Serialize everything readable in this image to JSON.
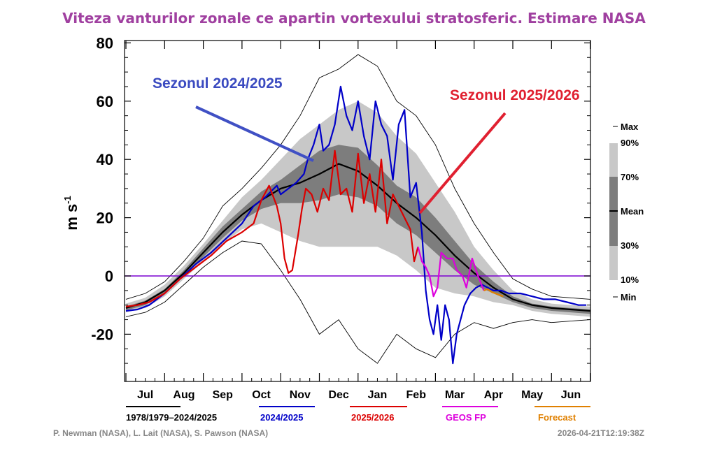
{
  "chart_data": {
    "type": "line",
    "title": "Viteza vanturilor zonale ce apartin vortexului stratosferic. Estimare NASA",
    "ylabel": "m s",
    "ylabel_sup": "-1",
    "ylim": [
      -32,
      80
    ],
    "y_ticks": [
      80,
      60,
      40,
      20,
      0,
      -20
    ],
    "y_tick_labels": [
      "80",
      "60",
      "40",
      "20",
      "0",
      "-20"
    ],
    "x_axis": "months Jul–Jun (climatological year)",
    "x_range_months": [
      0,
      12
    ],
    "month_labels": [
      "Jul",
      "Aug",
      "Sep",
      "Oct",
      "Nov",
      "Dec",
      "Jan",
      "Feb",
      "Mar",
      "Apr",
      "May",
      "Jun"
    ],
    "zero_line": 0,
    "colors": {
      "mean": "#000000",
      "extremes": "#000000",
      "band_10_90": "#c8c8c8",
      "band_30_70": "#7d7d7d",
      "s2024": "#0000c8",
      "s2025": "#dc0000",
      "geos": "#dd00dd",
      "forecast": "#e08000",
      "zero": "#7a00d0",
      "title": "#a040a0",
      "ann_blue": "#3a4ac0",
      "ann_red": "#e02030"
    },
    "climatology": {
      "x": [
        0,
        0.5,
        1,
        1.5,
        2,
        2.5,
        3,
        3.5,
        4,
        4.5,
        5,
        5.5,
        6,
        6.5,
        7,
        7.5,
        8,
        8.5,
        9,
        9.5,
        10,
        10.5,
        11,
        11.5,
        12
      ],
      "mean": [
        -11,
        -9,
        -5,
        1,
        8,
        15,
        21,
        26,
        30,
        32,
        35,
        38.5,
        36,
        31,
        25,
        20,
        14,
        7,
        1,
        -4,
        -8,
        -10,
        -11,
        -11.5,
        -12
      ],
      "p10": [
        -12.5,
        -11,
        -7,
        -1,
        5,
        11,
        16,
        18,
        15,
        12,
        10,
        10,
        10,
        10,
        7,
        2,
        -4,
        -6,
        -7,
        -9,
        -10,
        -12,
        -13,
        -13.5,
        -14
      ],
      "p30": [
        -11.8,
        -10,
        -5.8,
        0,
        6.5,
        13,
        19,
        23,
        25,
        25,
        26,
        28,
        27,
        24,
        18,
        14,
        8,
        2,
        -3,
        -6,
        -9,
        -11,
        -12,
        -12.5,
        -13
      ],
      "p70": [
        -10.5,
        -8.5,
        -4.5,
        2,
        9.5,
        17,
        23,
        29,
        33,
        38,
        43,
        45,
        44,
        38,
        31,
        27,
        20,
        12,
        4,
        -2,
        -7,
        -9.5,
        -10.5,
        -11,
        -11.5
      ],
      "p90": [
        -9.5,
        -7.5,
        -3,
        3.5,
        11,
        19,
        27,
        33,
        40,
        47,
        52,
        57,
        60,
        56,
        48,
        42,
        32,
        22,
        10,
        2,
        -5,
        -8,
        -9.5,
        -10,
        -10.5
      ],
      "min": [
        -14,
        -12.5,
        -9,
        -3,
        3,
        8,
        12,
        11,
        2,
        -8,
        -20,
        -15,
        -25,
        -30,
        -20,
        -25,
        -28,
        -20,
        -16,
        -18,
        -16,
        -15,
        -16,
        -15.5,
        -15
      ],
      "max": [
        -8,
        -6,
        -2,
        5,
        13,
        24,
        30,
        37,
        45,
        55,
        68,
        71,
        76,
        72,
        60,
        55,
        45,
        30,
        18,
        8,
        -1,
        -4.5,
        -7,
        -7.5,
        -8
      ]
    },
    "series": [
      {
        "name": "2024/2025",
        "x": [
          0,
          0.3,
          0.6,
          1,
          1.4,
          1.8,
          2.2,
          2.6,
          3,
          3.3,
          3.6,
          3.9,
          4.0,
          4.2,
          4.4,
          4.6,
          4.7,
          4.85,
          5.0,
          5.1,
          5.25,
          5.4,
          5.55,
          5.7,
          5.85,
          6.0,
          6.15,
          6.3,
          6.45,
          6.6,
          6.75,
          6.9,
          7.05,
          7.2,
          7.35,
          7.5,
          7.65,
          7.75,
          7.85,
          7.95,
          8.05,
          8.15,
          8.25,
          8.35,
          8.45,
          8.55,
          8.65,
          8.75,
          8.9,
          9.05,
          9.2,
          9.35,
          9.5,
          9.7,
          9.9,
          10.2,
          10.5,
          10.8,
          11.1,
          11.4,
          11.7,
          11.9
        ],
        "values": [
          -12,
          -11.5,
          -10,
          -6,
          -1,
          4,
          8,
          13,
          18,
          24,
          27,
          31,
          28,
          30,
          32,
          35,
          40,
          45,
          52,
          43,
          45,
          52,
          65,
          55,
          50,
          60,
          48,
          40,
          60,
          52,
          48,
          33,
          52,
          57,
          27,
          32,
          15,
          -5,
          -15,
          -20,
          -10,
          -22,
          -10,
          -15,
          -30,
          -20,
          -15,
          -10,
          -6,
          -4,
          -3,
          -4,
          -5,
          -5,
          -6,
          -6,
          -7,
          -8,
          -8,
          -9,
          -10,
          -10
        ]
      },
      {
        "name": "2025/2026",
        "x": [
          0,
          0.3,
          0.6,
          1,
          1.4,
          1.8,
          2.2,
          2.6,
          3,
          3.3,
          3.5,
          3.7,
          3.9,
          4.0,
          4.1,
          4.2,
          4.3,
          4.45,
          4.55,
          4.65,
          4.8,
          4.95,
          5.1,
          5.25,
          5.4,
          5.55,
          5.7,
          5.85,
          6.0,
          6.15,
          6.3,
          6.45,
          6.6,
          6.75,
          6.9,
          7.05,
          7.2,
          7.35,
          7.45,
          7.55
        ],
        "values": [
          -10.5,
          -10,
          -9,
          -6,
          -1,
          3,
          7,
          12,
          15,
          18,
          26,
          31,
          24,
          18,
          6,
          1,
          2,
          14,
          23,
          30,
          28,
          22,
          30,
          26,
          43,
          28,
          30,
          22,
          42,
          25,
          35,
          22,
          40,
          18,
          28,
          24,
          20,
          16,
          5,
          10
        ]
      },
      {
        "name": "GEOS FP",
        "x": [
          7.55,
          7.65,
          7.75,
          7.85,
          7.95,
          8.05,
          8.15,
          8.3,
          8.45,
          8.55,
          8.7,
          8.8,
          8.95,
          9.1,
          9.25
        ],
        "values": [
          10,
          5,
          3,
          0,
          -7,
          -4,
          8,
          6,
          6,
          2,
          0,
          -4,
          6,
          0,
          -5
        ]
      },
      {
        "name": "Forecast",
        "x": [
          9.25,
          9.35,
          9.45,
          9.55,
          9.65,
          9.75
        ],
        "values": [
          -5,
          -4.5,
          -5.5,
          -6,
          -6.5,
          -7
        ]
      }
    ],
    "band_legend": [
      "Max",
      "90%",
      "70%",
      "Mean",
      "30%",
      "10%",
      "Min"
    ],
    "line_legend": [
      {
        "label": "1978/1979–2024/2025",
        "color": "#000000"
      },
      {
        "label": "2024/2025",
        "color": "#0000c8"
      },
      {
        "label": "2025/2026",
        "color": "#dc0000"
      },
      {
        "label": "GEOS FP",
        "color": "#dd00dd"
      },
      {
        "label": "Forecast",
        "color": "#e08000"
      }
    ],
    "annotations": [
      {
        "text": "Sezonul 2024/2025",
        "color": "#3a4ac0"
      },
      {
        "text": "Sezonul 2025/2026",
        "color": "#e02030"
      }
    ],
    "credits": "P. Newman (NASA), L. Lait (NASA), S. Pawson (NASA)",
    "timestamp": "2026-04-21T12:19:38Z"
  }
}
